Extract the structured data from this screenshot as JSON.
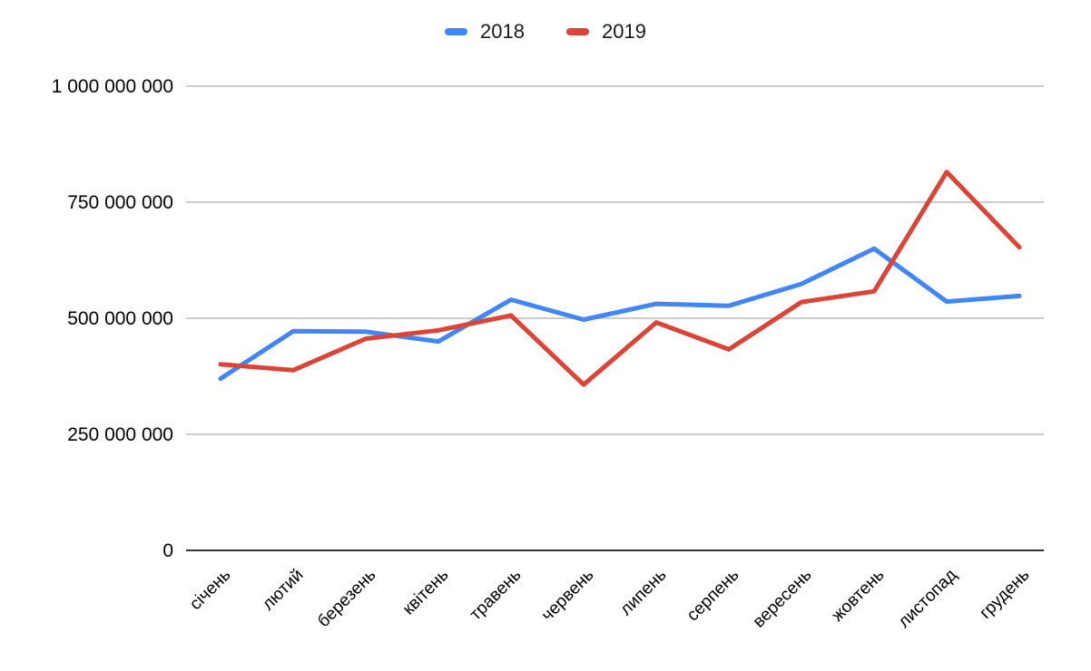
{
  "chart_data": {
    "type": "line",
    "title": "",
    "xlabel": "",
    "ylabel": "",
    "categories": [
      "січень",
      "лютий",
      "березень",
      "квітень",
      "травень",
      "червень",
      "липень",
      "серпень",
      "вересень",
      "жовтень",
      "листопад",
      "грудень"
    ],
    "series": [
      {
        "name": "2018",
        "color": "#4285F4",
        "values": [
          370000000,
          472000000,
          471000000,
          450000000,
          540000000,
          497000000,
          531000000,
          527000000,
          574000000,
          650000000,
          536000000,
          548000000
        ]
      },
      {
        "name": "2019",
        "color": "#DB4437",
        "values": [
          401000000,
          388000000,
          456000000,
          474000000,
          506000000,
          357000000,
          491000000,
          433000000,
          535000000,
          558000000,
          815000000,
          653000000
        ]
      }
    ],
    "ylim": [
      0,
      1000000000
    ],
    "ytick_interval": 250000000,
    "ytick_labels": [
      "0",
      "250 000 000",
      "500 000 000",
      "750 000 000",
      "1 000 000 000"
    ],
    "grid": true,
    "legend_position": "top",
    "x_label_rotation_deg": 45
  },
  "style": {
    "gridline_color": "#cccccc",
    "axis_color": "#333333",
    "background": "#ffffff",
    "line_width": 5
  }
}
